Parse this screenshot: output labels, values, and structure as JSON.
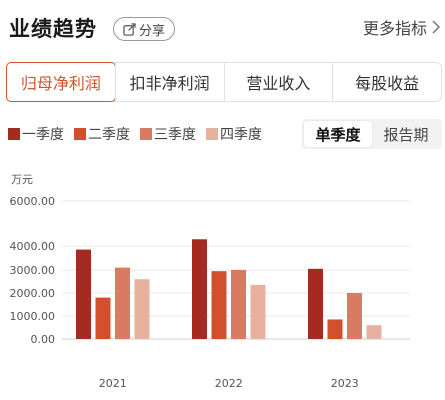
{
  "header": {
    "title": "业绩趋势",
    "share_label": "分享",
    "more_label": "更多指标"
  },
  "tabs": [
    {
      "label": "归母净利润",
      "active": true
    },
    {
      "label": "扣非净利润",
      "active": false
    },
    {
      "label": "营业收入",
      "active": false
    },
    {
      "label": "每股收益",
      "active": false
    }
  ],
  "toggle": {
    "single_quarter": "单季度",
    "report_period": "报告期",
    "selected": "single_quarter"
  },
  "colors": {
    "accent": "#d3552b",
    "q1": "#a52a1f",
    "q2": "#d4502c",
    "q3": "#d97a62",
    "q4": "#e8b09e"
  },
  "chart_data": {
    "type": "bar",
    "unit_label": "万元",
    "categories": [
      "2021",
      "2022",
      "2023"
    ],
    "series": [
      {
        "name": "一季度",
        "values": [
          3850,
          4300,
          3050
        ]
      },
      {
        "name": "二季度",
        "values": [
          1800,
          2950,
          850
        ]
      },
      {
        "name": "三季度",
        "values": [
          3100,
          3000,
          2000
        ]
      },
      {
        "name": "四季度",
        "values": [
          2600,
          2350,
          600
        ]
      }
    ],
    "yticks": [
      "6000.00",
      "4000.00",
      "3000.00",
      "2000.00",
      "1000.00",
      "0.00"
    ],
    "ytick_values": [
      6000,
      4000,
      3000,
      2000,
      1000,
      0
    ],
    "ylim": [
      0,
      6000
    ],
    "grid": true,
    "legend": "top-left"
  }
}
